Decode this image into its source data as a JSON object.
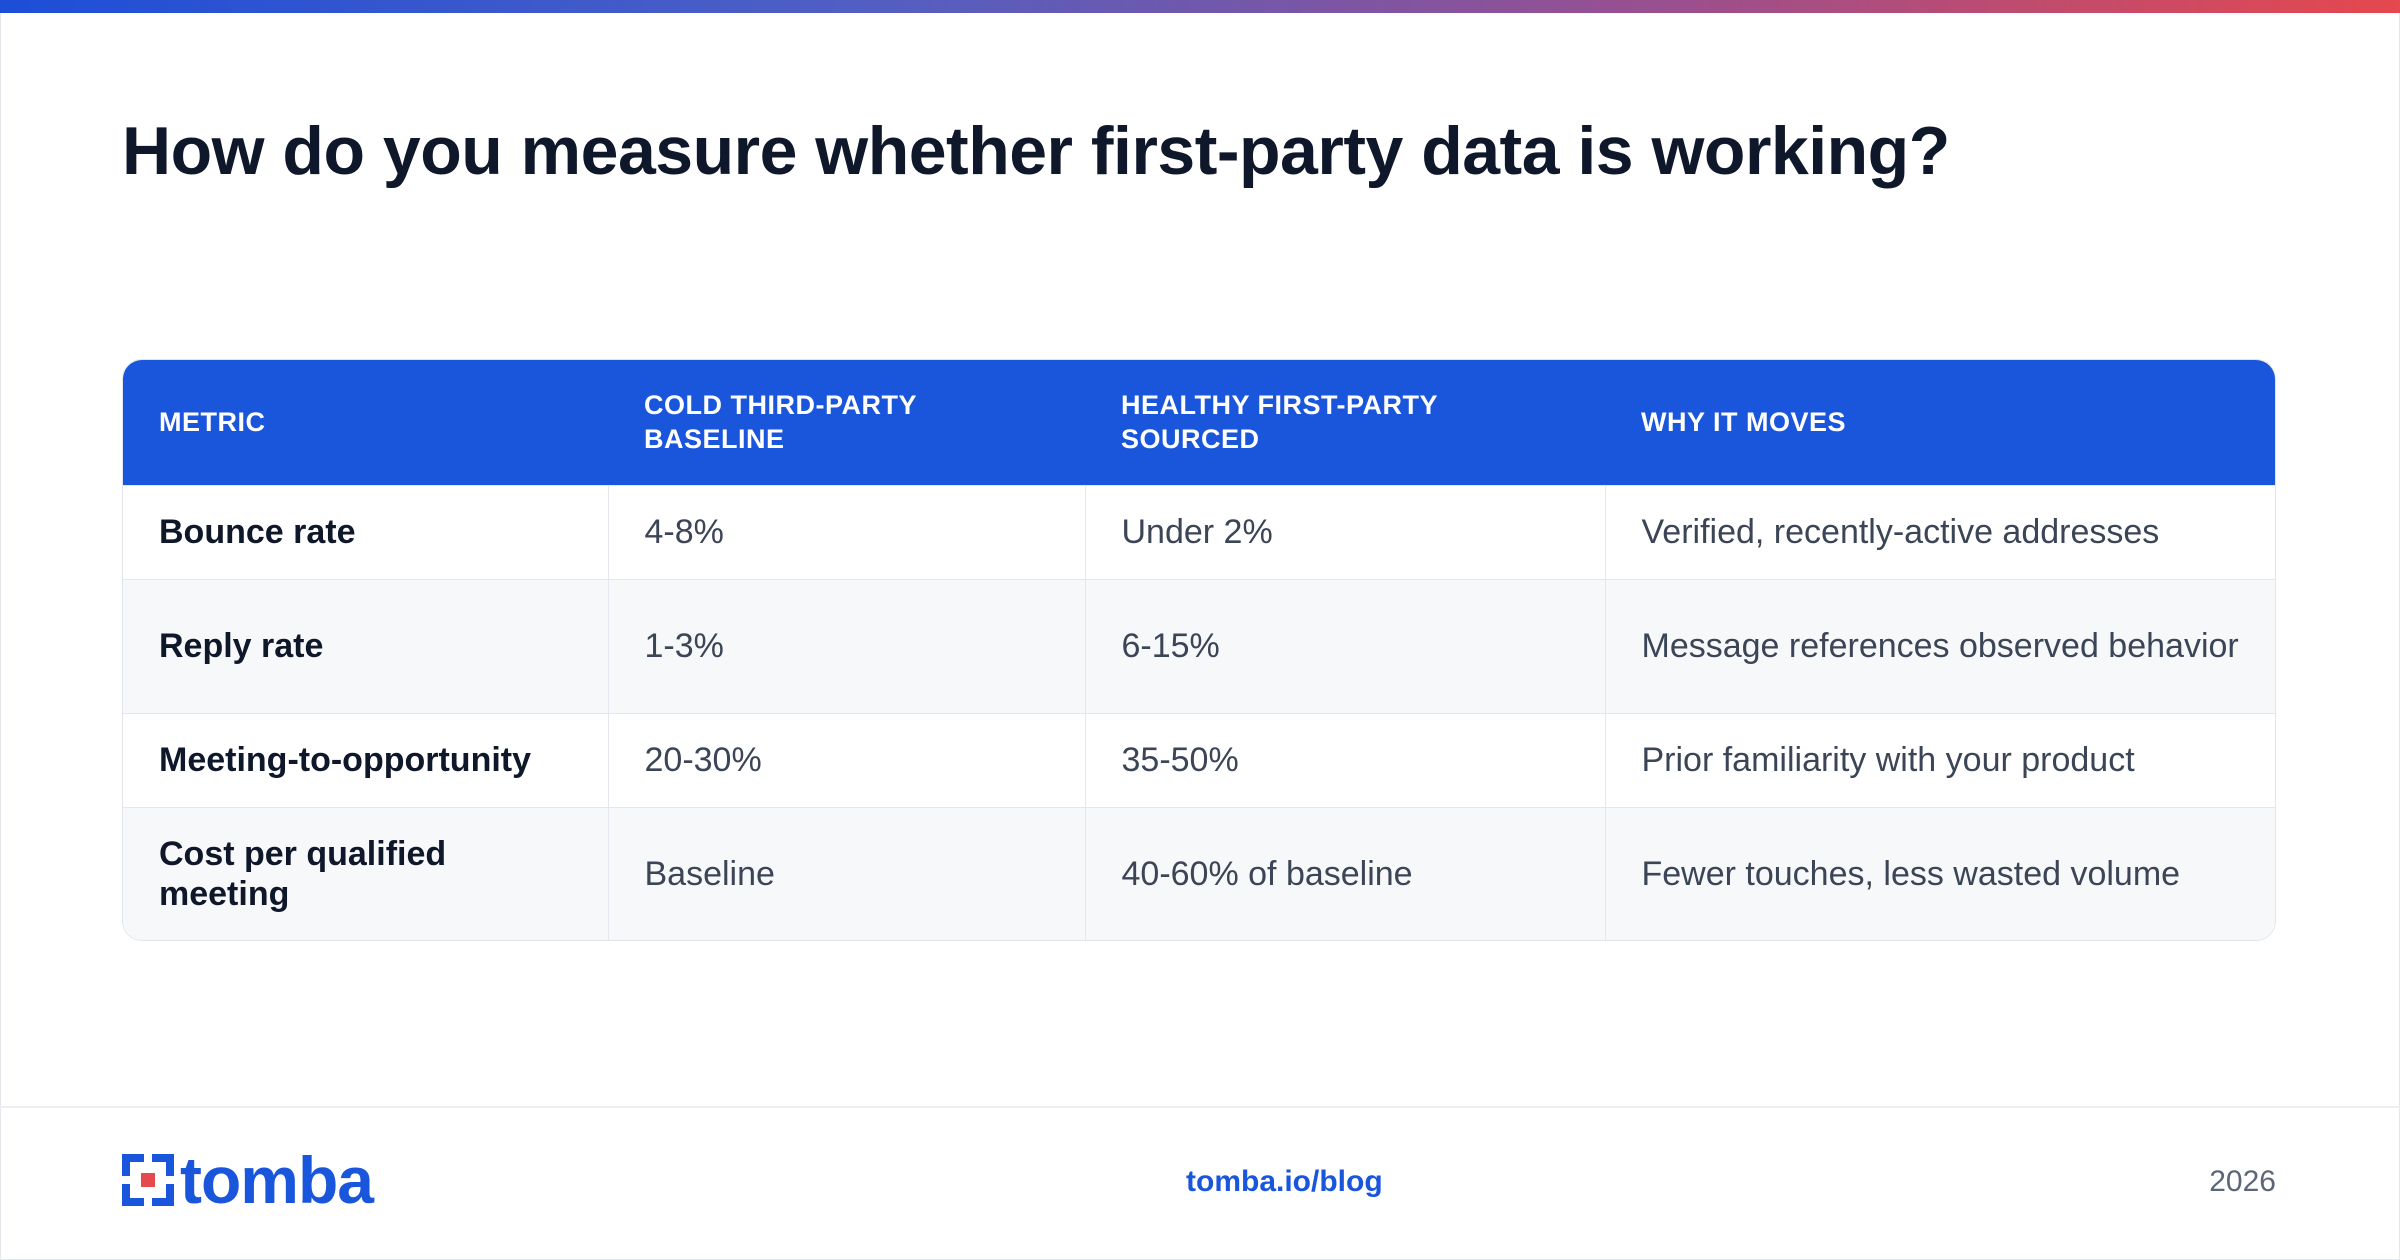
{
  "title": "How do you measure whether first-party data is working?",
  "colors": {
    "accent": "#1a56db",
    "title": "#0f172a",
    "body_text": "#3b4556",
    "row_alt": "#f7f8fa",
    "gradient_start": "#1d4ed8",
    "gradient_end": "#e5484d"
  },
  "table": {
    "headers": [
      "METRIC",
      "COLD THIRD-PARTY BASELINE",
      "HEALTHY FIRST-PARTY SOURCED",
      "WHY IT MOVES"
    ],
    "rows": [
      [
        "Bounce rate",
        "4-8%",
        "Under 2%",
        "Verified, recently-active addresses"
      ],
      [
        "Reply rate",
        "1-3%",
        "6-15%",
        "Message references observed behavior"
      ],
      [
        "Meeting-to-opportunity",
        "20-30%",
        "35-50%",
        "Prior familiarity with your product"
      ],
      [
        "Cost per qualified meeting",
        "Baseline",
        "40-60% of baseline",
        "Fewer touches, less wasted volume"
      ]
    ]
  },
  "footer": {
    "logo_text": "tomba",
    "logo_icon": "tomba-logo-icon",
    "link": "tomba.io/blog",
    "year": "2026"
  }
}
